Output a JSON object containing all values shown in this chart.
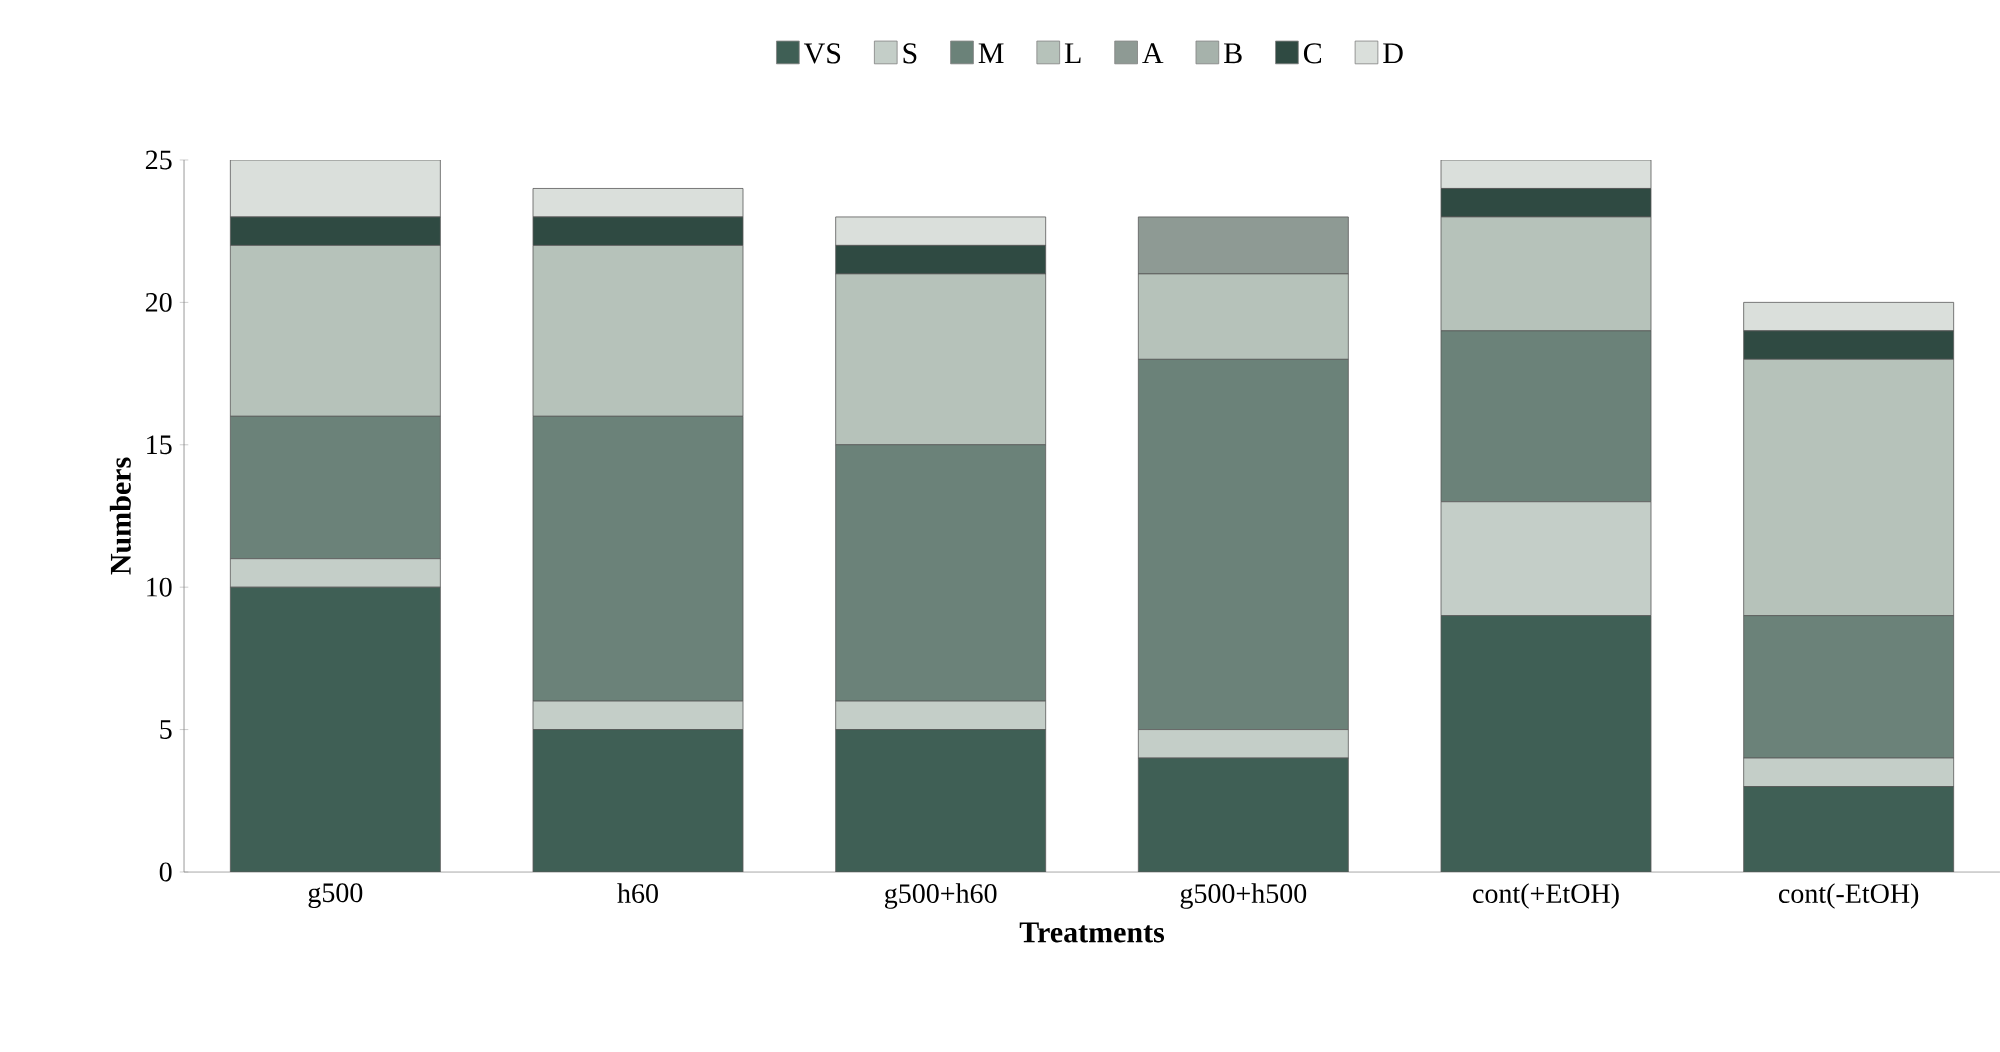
{
  "chart_data": {
    "type": "bar",
    "stacked": true,
    "xlabel": "Treatments",
    "ylabel": "Numbers",
    "categories": [
      "g500",
      "h60",
      "g500+h60",
      "g500+h500",
      "cont(+EtOH)",
      "cont(-EtOH)"
    ],
    "series": [
      {
        "name": "VS",
        "color": "#3f5f55",
        "values": [
          10,
          5,
          5,
          4,
          9,
          3
        ]
      },
      {
        "name": "S",
        "color": "#c4cec8",
        "values": [
          1,
          1,
          1,
          1,
          4,
          1
        ]
      },
      {
        "name": "M",
        "color": "#6b8279",
        "values": [
          5,
          10,
          9,
          13,
          6,
          5
        ]
      },
      {
        "name": "L",
        "color": "#b6c2ba",
        "values": [
          6,
          6,
          6,
          3,
          4,
          9
        ]
      },
      {
        "name": "A",
        "color": "#8e9a94",
        "values": [
          0,
          0,
          0,
          2,
          0,
          0
        ]
      },
      {
        "name": "B",
        "color": "#a6b2ab",
        "values": [
          0,
          0,
          0,
          0,
          0,
          0
        ]
      },
      {
        "name": "C",
        "color": "#2f4a42",
        "values": [
          1,
          1,
          1,
          0,
          1,
          1
        ]
      },
      {
        "name": "D",
        "color": "#dadfdb",
        "values": [
          2,
          1,
          1,
          0,
          1,
          1
        ]
      }
    ],
    "ylim": [
      0,
      25
    ],
    "yticks": [
      0,
      5,
      10,
      15,
      20,
      25
    ],
    "legend": "top",
    "grid": false
  }
}
